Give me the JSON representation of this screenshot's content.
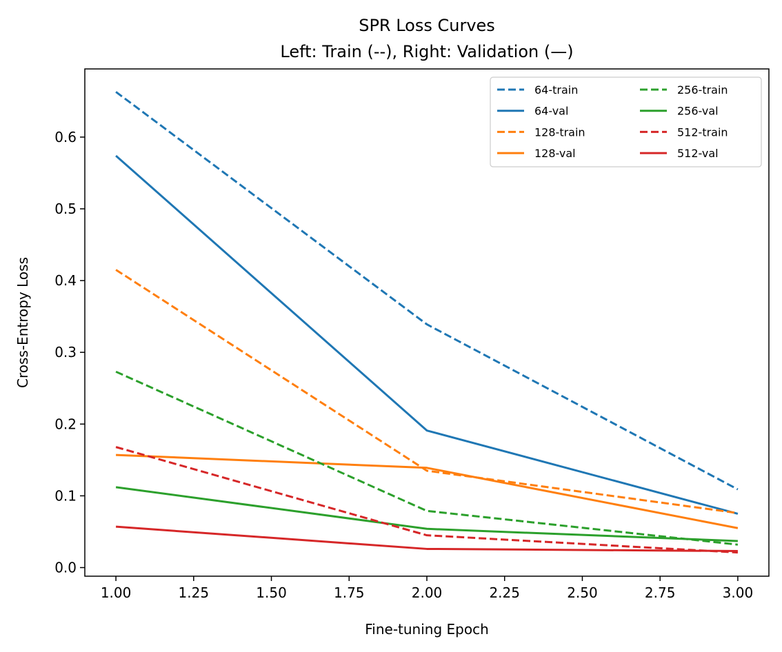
{
  "chart_data": {
    "type": "line",
    "title": "SPR Loss Curves",
    "subtitle": "Left: Train (--), Right: Validation (—)",
    "xlabel": "Fine-tuning Epoch",
    "ylabel": "Cross-Entropy Loss",
    "xlim": [
      0.9,
      3.1
    ],
    "ylim": [
      -0.012,
      0.695
    ],
    "xticks": [
      1.0,
      1.25,
      1.5,
      1.75,
      2.0,
      2.25,
      2.5,
      2.75,
      3.0
    ],
    "xtick_labels": [
      "1.00",
      "1.25",
      "1.50",
      "1.75",
      "2.00",
      "2.25",
      "2.50",
      "2.75",
      "3.00"
    ],
    "yticks": [
      0.0,
      0.1,
      0.2,
      0.3,
      0.4,
      0.5,
      0.6
    ],
    "ytick_labels": [
      "0.0",
      "0.1",
      "0.2",
      "0.3",
      "0.4",
      "0.5",
      "0.6"
    ],
    "grid": false,
    "legend_position": "top-right",
    "legend_columns": 2,
    "x": [
      1,
      2,
      3
    ],
    "series": [
      {
        "name": "64-train",
        "color": "#1f77b4",
        "style": "dashed",
        "values": [
          0.663,
          0.339,
          0.109
        ]
      },
      {
        "name": "64-val",
        "color": "#1f77b4",
        "style": "solid",
        "values": [
          0.574,
          0.191,
          0.075
        ]
      },
      {
        "name": "128-train",
        "color": "#ff7f0e",
        "style": "dashed",
        "values": [
          0.415,
          0.135,
          0.076
        ]
      },
      {
        "name": "128-val",
        "color": "#ff7f0e",
        "style": "solid",
        "values": [
          0.157,
          0.139,
          0.055
        ]
      },
      {
        "name": "256-train",
        "color": "#2ca02c",
        "style": "dashed",
        "values": [
          0.273,
          0.079,
          0.032
        ]
      },
      {
        "name": "256-val",
        "color": "#2ca02c",
        "style": "solid",
        "values": [
          0.112,
          0.054,
          0.037
        ]
      },
      {
        "name": "512-train",
        "color": "#d62728",
        "style": "dashed",
        "values": [
          0.168,
          0.045,
          0.021
        ]
      },
      {
        "name": "512-val",
        "color": "#d62728",
        "style": "solid",
        "values": [
          0.057,
          0.026,
          0.023
        ]
      }
    ]
  }
}
